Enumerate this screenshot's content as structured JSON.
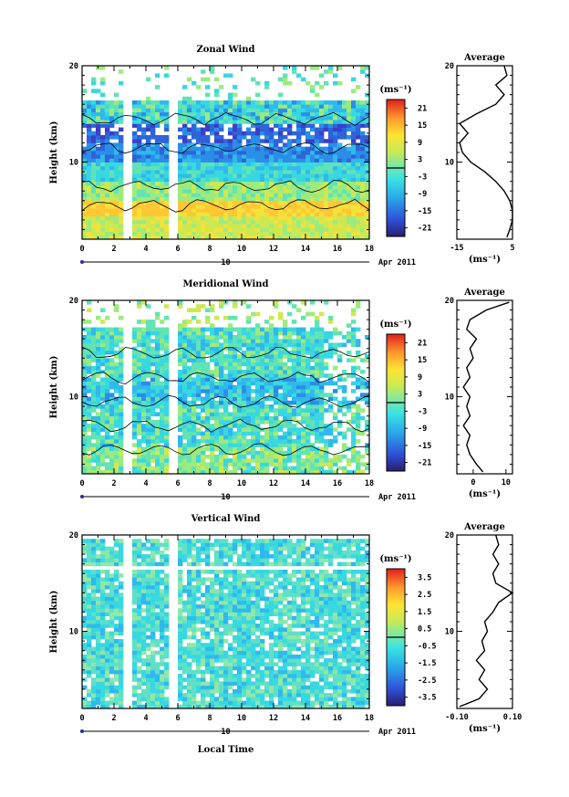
{
  "chart_data": [
    {
      "type": "heatmap",
      "title": "Zonal Wind",
      "ylabel": "Height (km)",
      "xlabel": "",
      "xlim": [
        0,
        18
      ],
      "ylim": [
        2,
        20
      ],
      "x_ticks": [
        "0",
        "2",
        "4",
        "6",
        "8",
        "10",
        "12",
        "14",
        "16",
        "18"
      ],
      "y_ticks": [
        "10",
        "20"
      ],
      "date_day": "10",
      "date_month": "Apr 2011",
      "colorbar": {
        "unit": "(ms⁻¹)",
        "range": [
          -24,
          24
        ],
        "ticks": [
          "21",
          "15",
          "9",
          "3",
          "-3",
          "-9",
          "-15",
          "-21"
        ]
      },
      "average": {
        "title": "Average",
        "xlabel": "(ms⁻¹)",
        "xlim": [
          -15,
          5
        ],
        "x_ticks": [
          "-15",
          "5"
        ],
        "y_ticks": [
          "10",
          "20"
        ],
        "profile": [
          [
            3,
            2.2
          ],
          [
            4,
            3
          ],
          [
            5,
            4
          ],
          [
            5,
            5
          ],
          [
            4,
            6
          ],
          [
            2,
            7
          ],
          [
            -1,
            8
          ],
          [
            -5,
            9
          ],
          [
            -10,
            10
          ],
          [
            -13,
            11
          ],
          [
            -14,
            12
          ],
          [
            -11,
            13
          ],
          [
            -14,
            14
          ],
          [
            -8,
            15
          ],
          [
            -1,
            16
          ],
          [
            2,
            17
          ],
          [
            -1,
            18
          ],
          [
            3,
            19
          ],
          [
            2,
            20
          ]
        ]
      }
    },
    {
      "type": "heatmap",
      "title": "Meridional Wind",
      "ylabel": "Height (km)",
      "xlabel": "",
      "xlim": [
        0,
        18
      ],
      "ylim": [
        2,
        20
      ],
      "x_ticks": [
        "0",
        "2",
        "4",
        "6",
        "8",
        "10",
        "12",
        "14",
        "16",
        "18"
      ],
      "y_ticks": [
        "10",
        "20"
      ],
      "date_day": "10",
      "date_month": "Apr 2011",
      "colorbar": {
        "unit": "(ms⁻¹)",
        "range": [
          -24,
          24
        ],
        "ticks": [
          "21",
          "15",
          "9",
          "3",
          "-3",
          "-9",
          "-15",
          "-21"
        ]
      },
      "average": {
        "title": "Average",
        "xlabel": "(ms⁻¹)",
        "xlim": [
          -5,
          12
        ],
        "x_ticks": [
          "0",
          "10"
        ],
        "y_ticks": [
          "10",
          "20"
        ],
        "profile": [
          [
            3,
            2.2
          ],
          [
            1,
            3
          ],
          [
            -1,
            4
          ],
          [
            -2,
            5
          ],
          [
            -1,
            6
          ],
          [
            -3,
            7
          ],
          [
            -1,
            8
          ],
          [
            -2,
            9
          ],
          [
            -1,
            10
          ],
          [
            -3,
            11
          ],
          [
            -1,
            12
          ],
          [
            -2,
            13
          ],
          [
            0,
            14
          ],
          [
            -1,
            15
          ],
          [
            1,
            16
          ],
          [
            -2,
            17
          ],
          [
            -1,
            18
          ],
          [
            4,
            19
          ],
          [
            11,
            19.8
          ]
        ]
      }
    },
    {
      "type": "heatmap",
      "title": "Vertical Wind",
      "ylabel": "Height (km)",
      "xlabel": "Local Time",
      "xlim": [
        0,
        18
      ],
      "ylim": [
        2,
        20
      ],
      "x_ticks": [
        "0",
        "2",
        "4",
        "6",
        "8",
        "10",
        "12",
        "14",
        "16",
        "18"
      ],
      "y_ticks": [
        "10",
        "20"
      ],
      "date_day": "10",
      "date_month": "Apr 2011",
      "colorbar": {
        "unit": "(ms⁻¹)",
        "range": [
          -4,
          4
        ],
        "ticks": [
          "3.5",
          "2.5",
          "1.5",
          "0.5",
          "-0.5",
          "-1.5",
          "-2.5",
          "-3.5"
        ]
      },
      "average": {
        "title": "Average",
        "xlabel": "(ms⁻¹)",
        "xlim": [
          -0.1,
          0.1
        ],
        "x_ticks": [
          "-0.10",
          "0.10"
        ],
        "y_ticks": [
          "10",
          "20"
        ],
        "profile": [
          [
            -0.09,
            2.2
          ],
          [
            -0.02,
            3
          ],
          [
            0.01,
            4
          ],
          [
            -0.02,
            5
          ],
          [
            0,
            6
          ],
          [
            -0.03,
            7
          ],
          [
            0,
            8
          ],
          [
            -0.01,
            9
          ],
          [
            0.01,
            10
          ],
          [
            0,
            11
          ],
          [
            0.03,
            12
          ],
          [
            0.05,
            13
          ],
          [
            0.1,
            14
          ],
          [
            0.04,
            15
          ],
          [
            0.03,
            16
          ],
          [
            0.05,
            17
          ],
          [
            0.03,
            18
          ],
          [
            0.05,
            19
          ],
          [
            0.04,
            20
          ]
        ]
      }
    }
  ]
}
